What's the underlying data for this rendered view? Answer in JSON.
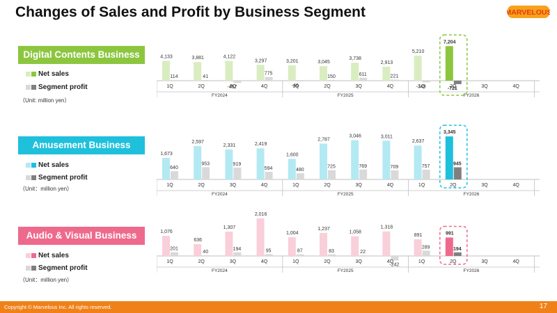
{
  "page": {
    "title": "Changes of Sales and Profit by Business Segment",
    "logo_text": "MARVELOUS",
    "copyright": "Copyright © Marvelous Inc. All rights reserved.",
    "page_number": "17"
  },
  "legend": {
    "net_sales": "Net sales",
    "segment_profit": "Segment profit"
  },
  "colors": {
    "digital_main": "#8cc63f",
    "digital_light": "#d9edc1",
    "amusement_main": "#1fc0dc",
    "amusement_light": "#b3e9f3",
    "audio_main": "#ee6a8c",
    "audio_light": "#f9cfda",
    "profit_light": "#d9d9d9",
    "profit_dark": "#7f7f7f",
    "footer": "#f08119",
    "logo_red": "#e8380d",
    "logo_orange": "#f6a21c"
  },
  "chart_data": [
    {
      "type": "bar",
      "title": "Digital Contents Business",
      "unit": "（Unit: million yen）",
      "categories": [
        "1Q",
        "2Q",
        "3Q",
        "4Q",
        "1Q",
        "2Q",
        "3Q",
        "4Q",
        "1Q",
        "2Q",
        "3Q",
        "4Q"
      ],
      "fiscal_years": [
        "FY2024",
        "FY2025",
        "FY2026"
      ],
      "highlight_index": 9,
      "series": [
        {
          "name": "Net sales",
          "values": [
            4133,
            3881,
            4122,
            3297,
            3201,
            3045,
            3738,
            2913,
            5210,
            7204,
            null,
            null
          ],
          "labels": [
            "4,133",
            "3,881",
            "4,122",
            "3,297",
            "3,201",
            "3,045",
            "3,738",
            "2,913",
            "5,210",
            "7,204",
            "",
            ""
          ]
        },
        {
          "name": "Segment profit",
          "values": [
            114,
            41,
            -457,
            775,
            -46,
            150,
            611,
            221,
            -349,
            -721,
            null,
            null
          ],
          "labels": [
            "114",
            "41",
            "-457",
            "775",
            "-46",
            "150",
            "611",
            "221",
            "-349",
            "-721",
            "",
            ""
          ]
        }
      ]
    },
    {
      "type": "bar",
      "title": "Amusement Business",
      "unit": "（Unit：million yen）",
      "categories": [
        "1Q",
        "2Q",
        "3Q",
        "4Q",
        "1Q",
        "2Q",
        "3Q",
        "4Q",
        "1Q",
        "2Q",
        "3Q",
        "4Q"
      ],
      "fiscal_years": [
        "FY2024",
        "FY2025",
        "FY2026"
      ],
      "highlight_index": 9,
      "series": [
        {
          "name": "Net sales",
          "values": [
            1673,
            2597,
            2331,
            2419,
            1600,
            2787,
            3046,
            3011,
            2637,
            3345,
            null,
            null
          ],
          "labels": [
            "1,673",
            "2,597",
            "2,331",
            "2,419",
            "1,600",
            "2,787",
            "3,046",
            "3,011",
            "2,637",
            "3,345",
            "",
            ""
          ]
        },
        {
          "name": "Segment profit",
          "values": [
            640,
            953,
            919,
            594,
            480,
            725,
            769,
            709,
            757,
            945,
            null,
            null
          ],
          "labels": [
            "640",
            "953",
            "919",
            "594",
            "480",
            "725",
            "769",
            "709",
            "757",
            "945",
            "",
            ""
          ]
        }
      ]
    },
    {
      "type": "bar",
      "title": "Audio & Visual Business",
      "unit": "（Unit：million yen）",
      "categories": [
        "1Q",
        "2Q",
        "3Q",
        "4Q",
        "1Q",
        "2Q",
        "3Q",
        "4Q",
        "1Q",
        "2Q",
        "3Q",
        "4Q"
      ],
      "fiscal_years": [
        "FY2024",
        "FY2025",
        "FY2026"
      ],
      "highlight_index": 9,
      "series": [
        {
          "name": "Net sales",
          "values": [
            1076,
            636,
            1307,
            2016,
            1004,
            1237,
            1058,
            1318,
            891,
            991,
            null,
            null
          ],
          "labels": [
            "1,076",
            "636",
            "1,307",
            "2,016",
            "1,004",
            "1,237",
            "1,058",
            "1,318",
            "891",
            "991",
            "",
            ""
          ]
        },
        {
          "name": "Segment profit",
          "values": [
            201,
            40,
            194,
            95,
            87,
            83,
            22,
            -242,
            289,
            194,
            null,
            null
          ],
          "labels": [
            "201",
            "40",
            "194",
            "95",
            "87",
            "83",
            "22",
            "-242",
            "289",
            "194",
            "",
            ""
          ]
        }
      ]
    }
  ]
}
